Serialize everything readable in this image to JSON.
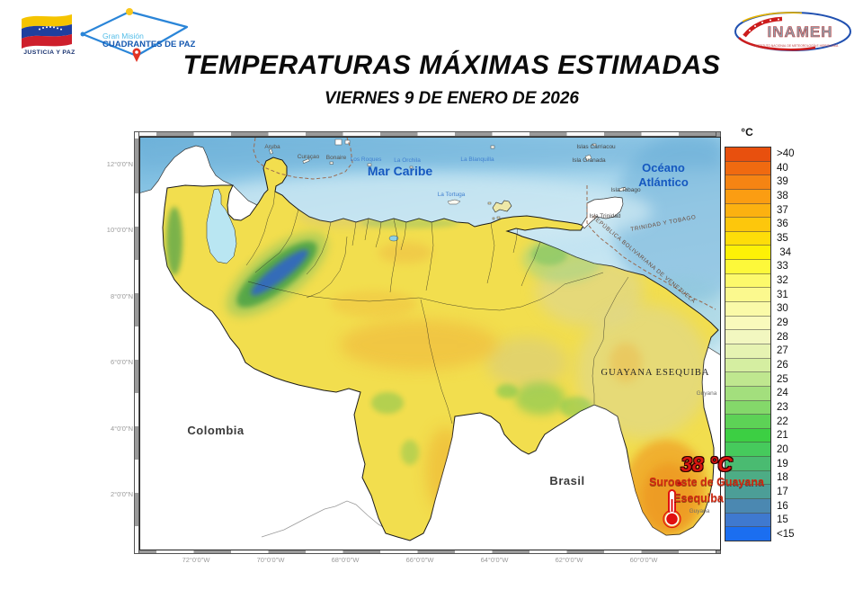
{
  "header": {
    "flag_caption": "JUSTICIA Y PAZ",
    "mision_line1": "Gran Misión",
    "mision_line2": "CUADRANTES DE PAZ",
    "inameh_name": "INAMEH",
    "inameh_subtitle": "INSTITUTO NACIONAL DE METEOROLOGÍA E HIDROLOGÍA",
    "title": "TEMPERATURAS MÁXIMAS ESTIMADAS",
    "subtitle": "VIERNES 9 DE ENERO DE 2026"
  },
  "map": {
    "sea": {
      "caribbean": "Mar Caribe",
      "atlantic_line1": "Océano",
      "atlantic_line2": "Atlántico"
    },
    "islands_blue": [
      "Los Roques",
      "La Orchila",
      "La Blanquilla",
      "La Tortuga"
    ],
    "islands_abc": [
      "Aruba",
      "Curaçao",
      "Bonaire"
    ],
    "islands_ne": [
      "Islas Carriacou",
      "Isla Granada",
      "Isla Tobago",
      "Isla Trinidad"
    ],
    "countries": {
      "colombia": "Colombia",
      "brasil": "Brasil"
    },
    "regions": {
      "esequiba": "GUAYANA ESEQUIBA",
      "guyana_north": "Guyana",
      "guyana_south": "Guyana"
    },
    "maritime": {
      "trinidad": "TRINIDAD Y TOBAGO",
      "venezuela": "REPÚBLICA BOLIVARIANA DE VENEZUELA"
    },
    "annotation": {
      "temperature": "38 °C",
      "location_line1": "Suroeste de Guayana",
      "location_line2": "Esequiba"
    },
    "x_ticks": [
      "72°0'0\"W",
      "70°0'0\"W",
      "68°0'0\"W",
      "66°0'0\"W",
      "64°0'0\"W",
      "62°0'0\"W",
      "60°0'0\"W"
    ],
    "y_ticks": [
      "12°0'0\"N",
      "10°0'0\"N",
      "8°0'0\"N",
      "6°0'0\"N",
      "4°0'0\"N",
      "2°0'0\"N"
    ]
  },
  "colorbar": {
    "unit": "°C",
    "entries": [
      {
        "label": ">40",
        "color": "#e8500e"
      },
      {
        "label": "40",
        "color": "#f06a10"
      },
      {
        "label": "39",
        "color": "#f58413"
      },
      {
        "label": "38",
        "color": "#fb9d12"
      },
      {
        "label": "37",
        "color": "#fcb110"
      },
      {
        "label": "36",
        "color": "#fdc70c"
      },
      {
        "label": "35",
        "color": "#fedd09"
      },
      {
        "label": " 34",
        "color": "#fdf106"
      },
      {
        "label": "33",
        "color": "#fdf83a"
      },
      {
        "label": "32",
        "color": "#fcf96b"
      },
      {
        "label": "31",
        "color": "#fbf98e"
      },
      {
        "label": "30",
        "color": "#fafaa8"
      },
      {
        "label": "29",
        "color": "#f9fabc"
      },
      {
        "label": "28",
        "color": "#f2f7c0"
      },
      {
        "label": "27",
        "color": "#e6f3b2"
      },
      {
        "label": "26",
        "color": "#d5eea1"
      },
      {
        "label": "25",
        "color": "#bfe78f"
      },
      {
        "label": "24",
        "color": "#a3df7d"
      },
      {
        "label": "23",
        "color": "#84d86a"
      },
      {
        "label": "22",
        "color": "#5dd256"
      },
      {
        "label": "21",
        "color": "#3ccf43"
      },
      {
        "label": "20",
        "color": "#46ca5c"
      },
      {
        "label": "19",
        "color": "#4abb71"
      },
      {
        "label": "18",
        "color": "#4dac85"
      },
      {
        "label": "17",
        "color": "#4c9e97"
      },
      {
        "label": "16",
        "color": "#4b88b1"
      },
      {
        "label": "15",
        "color": "#3f79cf"
      },
      {
        "label": "<15",
        "color": "#1b6ef0"
      }
    ]
  }
}
